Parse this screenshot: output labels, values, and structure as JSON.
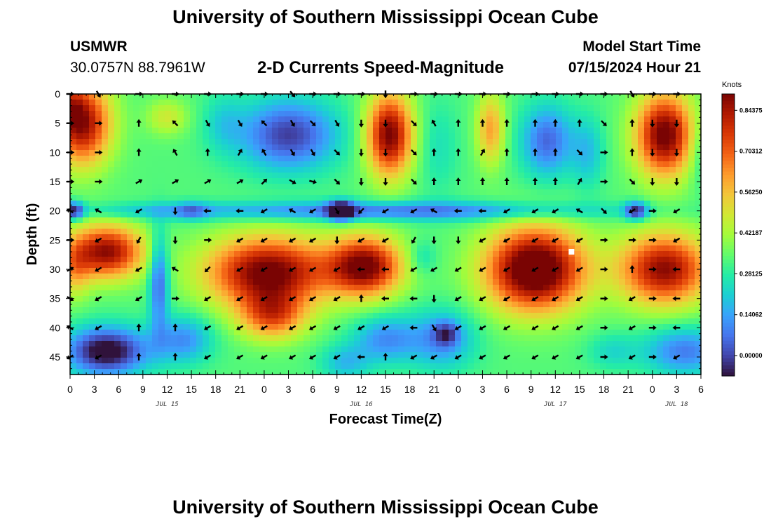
{
  "page": {
    "title": "University of Southern Mississippi Ocean Cube",
    "bottom_title": "University of Southern Mississippi Ocean Cube",
    "station_id": "USMWR",
    "station_coords": "30.0757N  88.7961W",
    "subtitle": "2-D Currents Speed-Magnitude",
    "model_start_label": "Model Start Time",
    "model_start_value": "07/15/2024 Hour 21"
  },
  "colors": {
    "scale": [
      "#30123b",
      "#4145ab",
      "#4675ed",
      "#39a2fc",
      "#1bcfd4",
      "#24eca6",
      "#61fc6c",
      "#a4fc3b",
      "#d1e834",
      "#f3c63a",
      "#fe9b2d",
      "#f36315",
      "#d93806",
      "#b11901",
      "#7a0403"
    ],
    "marker": "#ffffff",
    "arrow": "#000000"
  },
  "chart_data": {
    "type": "heatmap",
    "title": "2-D Currents Speed-Magnitude",
    "xlabel": "Forecast Time(Z)",
    "ylabel": "Depth (ft)",
    "x_units": "hours since 2024-07-15 00Z",
    "xlim": [
      0,
      78
    ],
    "ylim": [
      0,
      48
    ],
    "x_tick_values": [
      0,
      3,
      6,
      9,
      12,
      15,
      18,
      21,
      24,
      27,
      30,
      33,
      36,
      39,
      42,
      45,
      48,
      51,
      54,
      57,
      60,
      63,
      66,
      69,
      72,
      75,
      78
    ],
    "x_tick_labels": [
      "0",
      "3",
      "6",
      "9",
      "12",
      "15",
      "18",
      "21",
      "0",
      "3",
      "6",
      "9",
      "12",
      "15",
      "18",
      "21",
      "0",
      "3",
      "6",
      "9",
      "12",
      "15",
      "18",
      "21",
      "0",
      "3",
      "6"
    ],
    "date_labels": [
      {
        "x": 12,
        "text": "JUL 15"
      },
      {
        "x": 36,
        "text": "JUL 16"
      },
      {
        "x": 60,
        "text": "JUL 17"
      },
      {
        "x": 75,
        "text": "JUL 18"
      }
    ],
    "y_ticks": [
      0,
      5,
      10,
      15,
      20,
      25,
      30,
      35,
      40,
      45
    ],
    "colorbar": {
      "label": "Knots",
      "min": -0.07,
      "max": 0.9,
      "ticks": [
        0.0,
        0.14062,
        0.28125,
        0.42187,
        0.5625,
        0.70312,
        0.84375
      ],
      "tick_labels": [
        "0.00000",
        "0.14062",
        "0.28125",
        "0.42187",
        "0.56250",
        "0.70312",
        "0.84375"
      ]
    },
    "background_speed": 0.33,
    "speed_blobs": [
      {
        "x": 1.5,
        "y": 5,
        "sx": 3.5,
        "sy": 7,
        "v": 0.55
      },
      {
        "x": 0.2,
        "y": 2,
        "sx": 1.5,
        "sy": 4,
        "v": 0.15
      },
      {
        "x": 12,
        "y": 4,
        "sx": 2.5,
        "sy": 3,
        "v": 0.15
      },
      {
        "x": 27,
        "y": 7,
        "sx": 6,
        "sy": 6,
        "v": -0.34
      },
      {
        "x": 19,
        "y": 5,
        "sx": 2.5,
        "sy": 5,
        "v": -0.1
      },
      {
        "x": 39.5,
        "y": 7,
        "sx": 2.8,
        "sy": 7,
        "v": 0.58
      },
      {
        "x": 52,
        "y": 6,
        "sx": 1.7,
        "sy": 6,
        "v": 0.28
      },
      {
        "x": 59,
        "y": 8,
        "sx": 3.2,
        "sy": 6,
        "v": -0.28
      },
      {
        "x": 64,
        "y": 10,
        "sx": 2,
        "sy": 6,
        "v": -0.14
      },
      {
        "x": 73.5,
        "y": 7,
        "sx": 3.5,
        "sy": 7,
        "v": 0.6
      },
      {
        "x": 78,
        "y": 10,
        "sx": 1.5,
        "sy": 6,
        "v": -0.1
      },
      {
        "x": 45.5,
        "y": 9,
        "sx": 2.5,
        "sy": 8,
        "v": -0.08
      },
      {
        "x": 39,
        "y": 20,
        "sx": 26,
        "sy": 1.6,
        "v": -0.27
      },
      {
        "x": 9,
        "y": 20,
        "sx": 9,
        "sy": 1.3,
        "v": -0.08
      },
      {
        "x": 33.5,
        "y": 20,
        "sx": 1.6,
        "sy": 1.6,
        "v": -0.45
      },
      {
        "x": 0.5,
        "y": 20,
        "sx": 1.2,
        "sy": 1.5,
        "v": -0.35
      },
      {
        "x": 70,
        "y": 20,
        "sx": 1.4,
        "sy": 1.5,
        "v": -0.35
      },
      {
        "x": 15,
        "y": 20,
        "sx": 2,
        "sy": 1.5,
        "v": -0.15
      },
      {
        "x": 4.5,
        "y": 27,
        "sx": 4.5,
        "sy": 4.5,
        "v": 0.55
      },
      {
        "x": 0.5,
        "y": 30,
        "sx": 2,
        "sy": 5,
        "v": 0.2
      },
      {
        "x": 11,
        "y": 32,
        "sx": 1.2,
        "sy": 8,
        "v": -0.3
      },
      {
        "x": 24.5,
        "y": 30.5,
        "sx": 7.5,
        "sy": 6,
        "v": 0.6
      },
      {
        "x": 25,
        "y": 38,
        "sx": 4,
        "sy": 4,
        "v": 0.35
      },
      {
        "x": 36.5,
        "y": 29.5,
        "sx": 4.5,
        "sy": 5,
        "v": 0.58
      },
      {
        "x": 57.5,
        "y": 30,
        "sx": 6,
        "sy": 7,
        "v": 0.7
      },
      {
        "x": 73.5,
        "y": 30,
        "sx": 5.5,
        "sy": 6,
        "v": 0.55
      },
      {
        "x": 4.5,
        "y": 44,
        "sx": 5,
        "sy": 4,
        "v": -0.45
      },
      {
        "x": 14,
        "y": 42,
        "sx": 3.5,
        "sy": 4,
        "v": -0.22
      },
      {
        "x": 46,
        "y": 42,
        "sx": 4,
        "sy": 5,
        "v": -0.22
      },
      {
        "x": 46.5,
        "y": 41,
        "sx": 1.5,
        "sy": 2,
        "v": -0.2
      },
      {
        "x": 39,
        "y": 42,
        "sx": 4,
        "sy": 4,
        "v": -0.22
      },
      {
        "x": 34,
        "y": 46,
        "sx": 3,
        "sy": 3,
        "v": -0.15
      },
      {
        "x": 76,
        "y": 44,
        "sx": 5,
        "sy": 4,
        "v": -0.25
      },
      {
        "x": 67,
        "y": 44,
        "sx": 3,
        "sy": 3,
        "v": -0.1
      },
      {
        "x": 43.5,
        "y": 28,
        "sx": 1.8,
        "sy": 3,
        "v": -0.1
      }
    ],
    "vector_rows_depth": [
      0,
      5,
      10,
      15,
      20,
      25,
      30,
      35,
      40,
      45
    ],
    "vector_columns_hours": [
      0,
      3.5,
      8.5,
      13,
      17,
      21,
      24,
      27.5,
      30,
      33,
      36,
      39,
      42.5,
      45,
      48,
      51,
      54,
      57.5,
      60,
      63,
      66,
      69.5,
      72,
      75
    ],
    "vector_angles_deg": [
      [
        0,
        60,
        0,
        0,
        0,
        0,
        0,
        50,
        0,
        0,
        0,
        90,
        0,
        0,
        0,
        0,
        0,
        0,
        0,
        0,
        0,
        60,
        0,
        0
      ],
      [
        0,
        0,
        270,
        225,
        60,
        60,
        225,
        60,
        45,
        60,
        90,
        90,
        45,
        240,
        270,
        270,
        270,
        270,
        270,
        270,
        45,
        270,
        90,
        90
      ],
      [
        0,
        0,
        270,
        240,
        270,
        300,
        240,
        60,
        60,
        45,
        90,
        90,
        45,
        270,
        270,
        300,
        270,
        270,
        270,
        45,
        0,
        270,
        90,
        90
      ],
      [
        0,
        0,
        330,
        330,
        330,
        330,
        315,
        30,
        15,
        45,
        90,
        90,
        45,
        270,
        270,
        270,
        270,
        270,
        270,
        300,
        0,
        45,
        90,
        90
      ],
      [
        210,
        210,
        150,
        90,
        180,
        180,
        150,
        210,
        150,
        60,
        135,
        150,
        150,
        210,
        180,
        180,
        150,
        150,
        150,
        210,
        45,
        150,
        0,
        150
      ],
      [
        0,
        150,
        120,
        90,
        0,
        150,
        150,
        150,
        150,
        90,
        150,
        150,
        120,
        90,
        90,
        150,
        150,
        150,
        150,
        150,
        0,
        0,
        0,
        150
      ],
      [
        330,
        150,
        150,
        210,
        135,
        150,
        150,
        150,
        150,
        150,
        180,
        180,
        150,
        150,
        150,
        150,
        150,
        150,
        150,
        150,
        0,
        270,
        0,
        180
      ],
      [
        30,
        150,
        150,
        0,
        150,
        150,
        150,
        150,
        150,
        150,
        270,
        180,
        180,
        90,
        150,
        150,
        150,
        150,
        150,
        150,
        0,
        150,
        0,
        180
      ],
      [
        210,
        150,
        270,
        270,
        150,
        150,
        150,
        150,
        150,
        150,
        150,
        150,
        180,
        60,
        150,
        150,
        150,
        150,
        150,
        150,
        0,
        150,
        0,
        180
      ],
      [
        150,
        150,
        270,
        270,
        150,
        150,
        150,
        150,
        150,
        150,
        180,
        270,
        150,
        150,
        150,
        150,
        150,
        150,
        150,
        150,
        0,
        150,
        0,
        150
      ]
    ],
    "marker": {
      "x": 62,
      "y": 27
    }
  }
}
